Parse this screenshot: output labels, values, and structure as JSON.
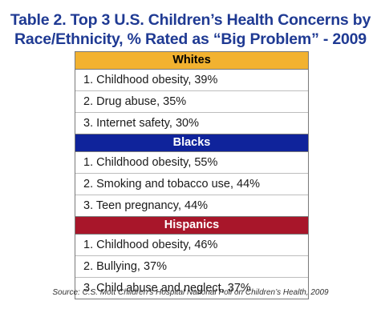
{
  "title_line1": "Table 2. Top 3 U.S. Children’s Health Concerns by",
  "title_line2": "Race/Ethnicity, % Rated as “Big Problem” - 2009",
  "source": "Source: C.S. Mott Children’s Hospital National Poll on Children’s Health, 2009",
  "colors": {
    "title": "#1f3a93",
    "whites_header": "#f2b230",
    "blacks_header": "#0f239b",
    "hispanics_header": "#a8162a"
  },
  "chart_data": {
    "type": "table",
    "title": "Table 2. Top 3 U.S. Children’s Health Concerns by Race/Ethnicity, % Rated as “Big Problem” - 2009",
    "groups": [
      {
        "name": "Whites",
        "items": [
          {
            "rank": 1,
            "label": "1. Childhood obesity, 39%",
            "concern": "Childhood obesity",
            "percent": 39
          },
          {
            "rank": 2,
            "label": "2. Drug abuse, 35%",
            "concern": "Drug abuse",
            "percent": 35
          },
          {
            "rank": 3,
            "label": "3. Internet safety, 30%",
            "concern": "Internet safety",
            "percent": 30
          }
        ]
      },
      {
        "name": "Blacks",
        "items": [
          {
            "rank": 1,
            "label": "1. Childhood obesity, 55%",
            "concern": "Childhood obesity",
            "percent": 55
          },
          {
            "rank": 2,
            "label": "2. Smoking and tobacco use, 44%",
            "concern": "Smoking and tobacco use",
            "percent": 44
          },
          {
            "rank": 3,
            "label": "3. Teen pregnancy, 44%",
            "concern": "Teen pregnancy",
            "percent": 44
          }
        ]
      },
      {
        "name": "Hispanics",
        "items": [
          {
            "rank": 1,
            "label": "1. Childhood obesity, 46%",
            "concern": "Childhood obesity",
            "percent": 46
          },
          {
            "rank": 2,
            "label": "2. Bullying, 37%",
            "concern": "Bullying",
            "percent": 37
          },
          {
            "rank": 3,
            "label": "3. Child abuse and neglect, 37%",
            "concern": "Child abuse and neglect",
            "percent": 37
          }
        ]
      }
    ]
  }
}
